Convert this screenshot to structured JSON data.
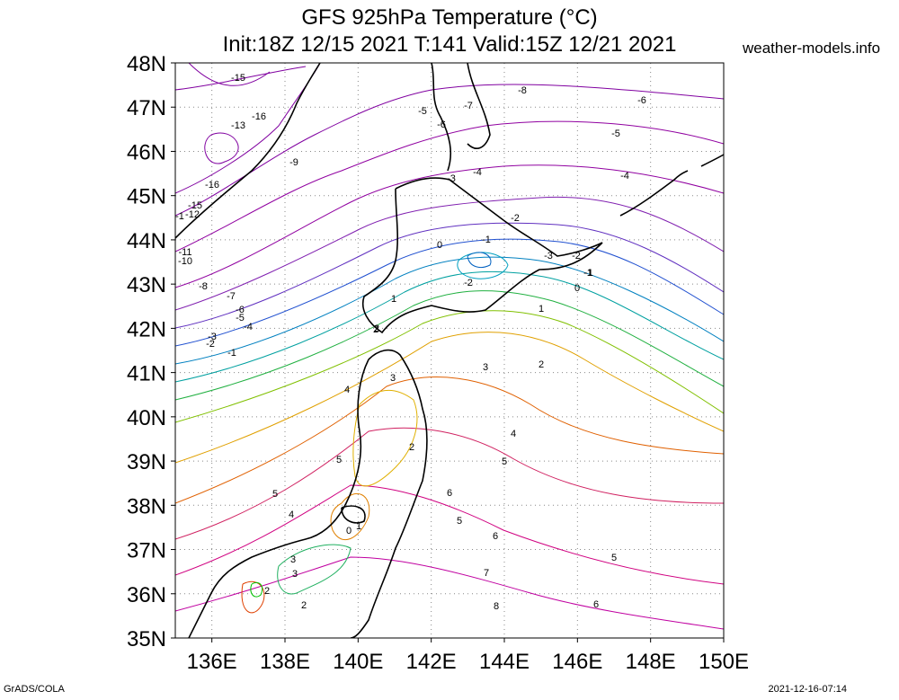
{
  "title_line1": "GFS 925hPa Temperature (°C)",
  "title_line2": "Init:18Z 12/15 2021 T:141 Valid:15Z 12/21 2021",
  "site": "weather-models.info",
  "footer_left": "GrADS/COLA",
  "footer_right": "2021-12-16-07:14",
  "map": {
    "lon_range": [
      135,
      150
    ],
    "lat_range": [
      35,
      48
    ],
    "lon_ticks": [
      "136E",
      "138E",
      "140E",
      "142E",
      "144E",
      "146E",
      "148E",
      "150E"
    ],
    "lat_ticks": [
      "35N",
      "36N",
      "37N",
      "38N",
      "39N",
      "40N",
      "41N",
      "42N",
      "43N",
      "44N",
      "45N",
      "46N",
      "47N",
      "48N"
    ],
    "gridlines": "dotted"
  },
  "contour_labels": [
    "-15",
    "-16",
    "-13",
    "-9",
    "-16",
    "-15",
    "-1",
    "-12",
    "-11",
    "-10",
    "-8",
    "-7",
    "-6",
    "-5",
    "-4",
    "-3",
    "-2",
    "-1",
    "-8",
    "-7",
    "-6",
    "-5",
    "-6",
    "-5",
    "-4",
    "-3",
    "-4",
    "-2",
    "-1",
    "0",
    "-1",
    "-2",
    "-3",
    "-2",
    "-1",
    "0",
    "1",
    "1",
    "2",
    "2",
    "3",
    "3",
    "3",
    "4",
    "4",
    "5",
    "5",
    "5",
    "4",
    "2",
    "2",
    "6",
    "5",
    "6",
    "0",
    "1",
    "3",
    "2",
    "2",
    "5",
    "7",
    "8",
    "6"
  ]
}
